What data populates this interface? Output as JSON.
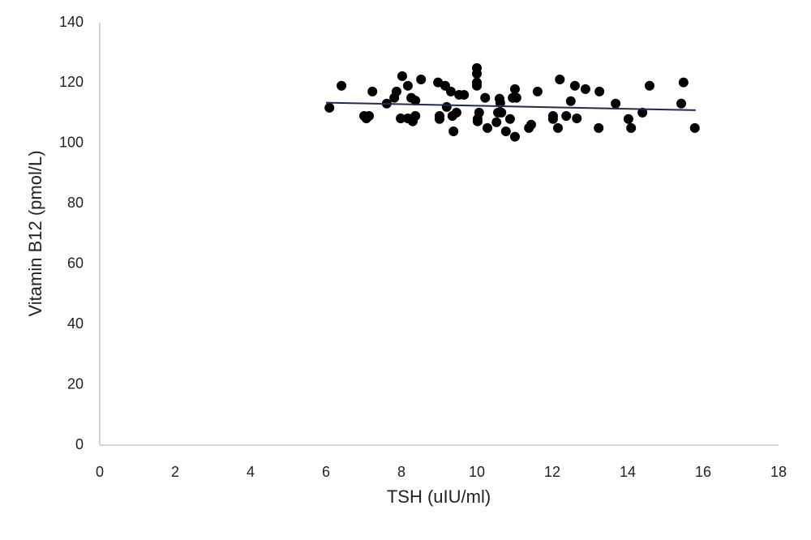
{
  "chart_data": {
    "type": "scatter",
    "xlabel": "TSH (uIU/ml)",
    "ylabel": "Vitamin B12 (pmol/L)",
    "xlim": [
      0,
      18
    ],
    "xticks": [
      0,
      2,
      4,
      6,
      8,
      10,
      12,
      14,
      16,
      18
    ],
    "ylim": [
      0,
      140
    ],
    "yticks": [
      0,
      20,
      40,
      60,
      80,
      100,
      120,
      140
    ],
    "grid": false,
    "series": [
      {
        "color": "#000000",
        "x": [
          6.09,
          6.41,
          7.01,
          7.07,
          7.14,
          7.23,
          7.61,
          7.81,
          7.87,
          7.98,
          8.02,
          8.17,
          8.17,
          8.26,
          8.3,
          8.37,
          8.37,
          8.52,
          8.97,
          9.01,
          9.01,
          9.16,
          9.2,
          9.31,
          9.35,
          9.38,
          9.46,
          9.53,
          9.66,
          10,
          10,
          10,
          10,
          10.02,
          10.02,
          10.06,
          10.22,
          10.28,
          10.52,
          10.56,
          10.6,
          10.62,
          10.65,
          10.77,
          10.88,
          10.95,
          11.01,
          11.01,
          11.05,
          11.38,
          11.44,
          11.61,
          12.02,
          12.02,
          12.15,
          12.2,
          12.37,
          12.49,
          12.6,
          12.65,
          12.88,
          13.23,
          13.25,
          13.68,
          14.02,
          14.09,
          14.39,
          14.58,
          15.42,
          15.48,
          15.78
        ],
        "values": [
          111.8,
          119.1,
          109.1,
          108.3,
          109.1,
          117.2,
          113.2,
          115.1,
          117.2,
          108.3,
          122.3,
          119.1,
          108.3,
          115.1,
          107.3,
          114.2,
          109.1,
          121.2,
          120.2,
          109.1,
          108.1,
          119.1,
          112.1,
          117.2,
          109.1,
          104,
          110.2,
          116.1,
          116.1,
          125,
          123.1,
          120.2,
          119.1,
          108.1,
          107.3,
          110.2,
          115.1,
          105.1,
          107,
          110.2,
          114.8,
          113.4,
          110.2,
          104,
          108.1,
          115.1,
          118,
          102.2,
          115.1,
          105.1,
          106.2,
          117.2,
          109.1,
          108.1,
          105.1,
          121.2,
          109.1,
          114,
          119.1,
          108.3,
          118,
          105.1,
          117.2,
          113.2,
          108.1,
          105.1,
          110.2,
          119.1,
          113.2,
          120.2,
          105.1
        ]
      }
    ],
    "trendline": {
      "color": "#1f2d4e",
      "x": [
        6,
        15.8
      ],
      "y": [
        113.5,
        111
      ]
    }
  }
}
